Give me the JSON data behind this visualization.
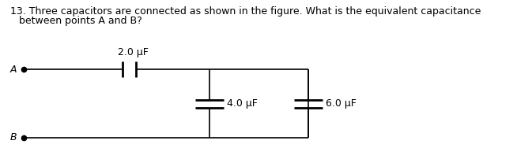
{
  "title_line1": "13. Three capacitors are connected as shown in the figure. What is the equivalent capacitance",
  "title_line2": "between points A and B?",
  "bg_color": "#ffffff",
  "text_color": "#000000",
  "label_2uF": "2.0 μF",
  "label_4uF": "4.0 μF",
  "label_6uF": "6.0 μF",
  "label_A": "A",
  "label_B": "B",
  "fig_width": 6.54,
  "fig_height": 2.02,
  "dpi": 100,
  "title_fontsize": 9.0,
  "circuit_fontsize": 9.0,
  "lw": 1.2
}
